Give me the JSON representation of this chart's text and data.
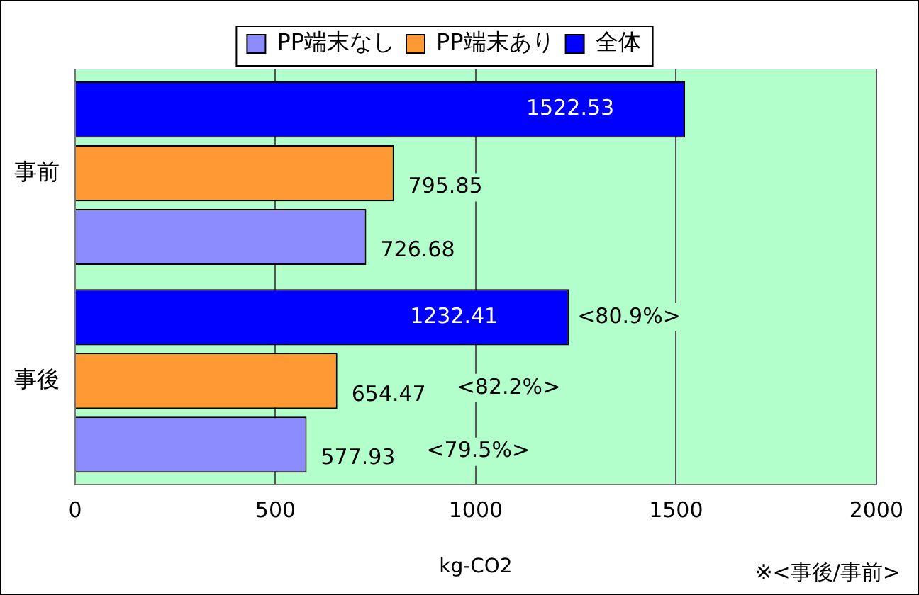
{
  "chart_data": {
    "type": "bar",
    "orientation": "horizontal",
    "categories": [
      "事前",
      "事後"
    ],
    "series": [
      {
        "name": "PP端末なし",
        "color": "#8c8cff",
        "values": [
          726.68,
          577.93
        ]
      },
      {
        "name": "PP端末あり",
        "color": "#ff9933",
        "values": [
          795.85,
          654.47
        ]
      },
      {
        "name": "全体",
        "color": "#0000ff",
        "values": [
          1522.53,
          1232.41
        ]
      }
    ],
    "xlabel": "kg-CO2",
    "xlim": [
      0,
      2000
    ],
    "xticks": [
      0,
      500,
      1000,
      1500,
      2000
    ],
    "grid": "x",
    "legend": "top",
    "data_labels": true,
    "annotations": [
      "<80.9%>",
      "<82.2%>",
      "<79.5%>",
      "※<事後/事前>"
    ]
  }
}
